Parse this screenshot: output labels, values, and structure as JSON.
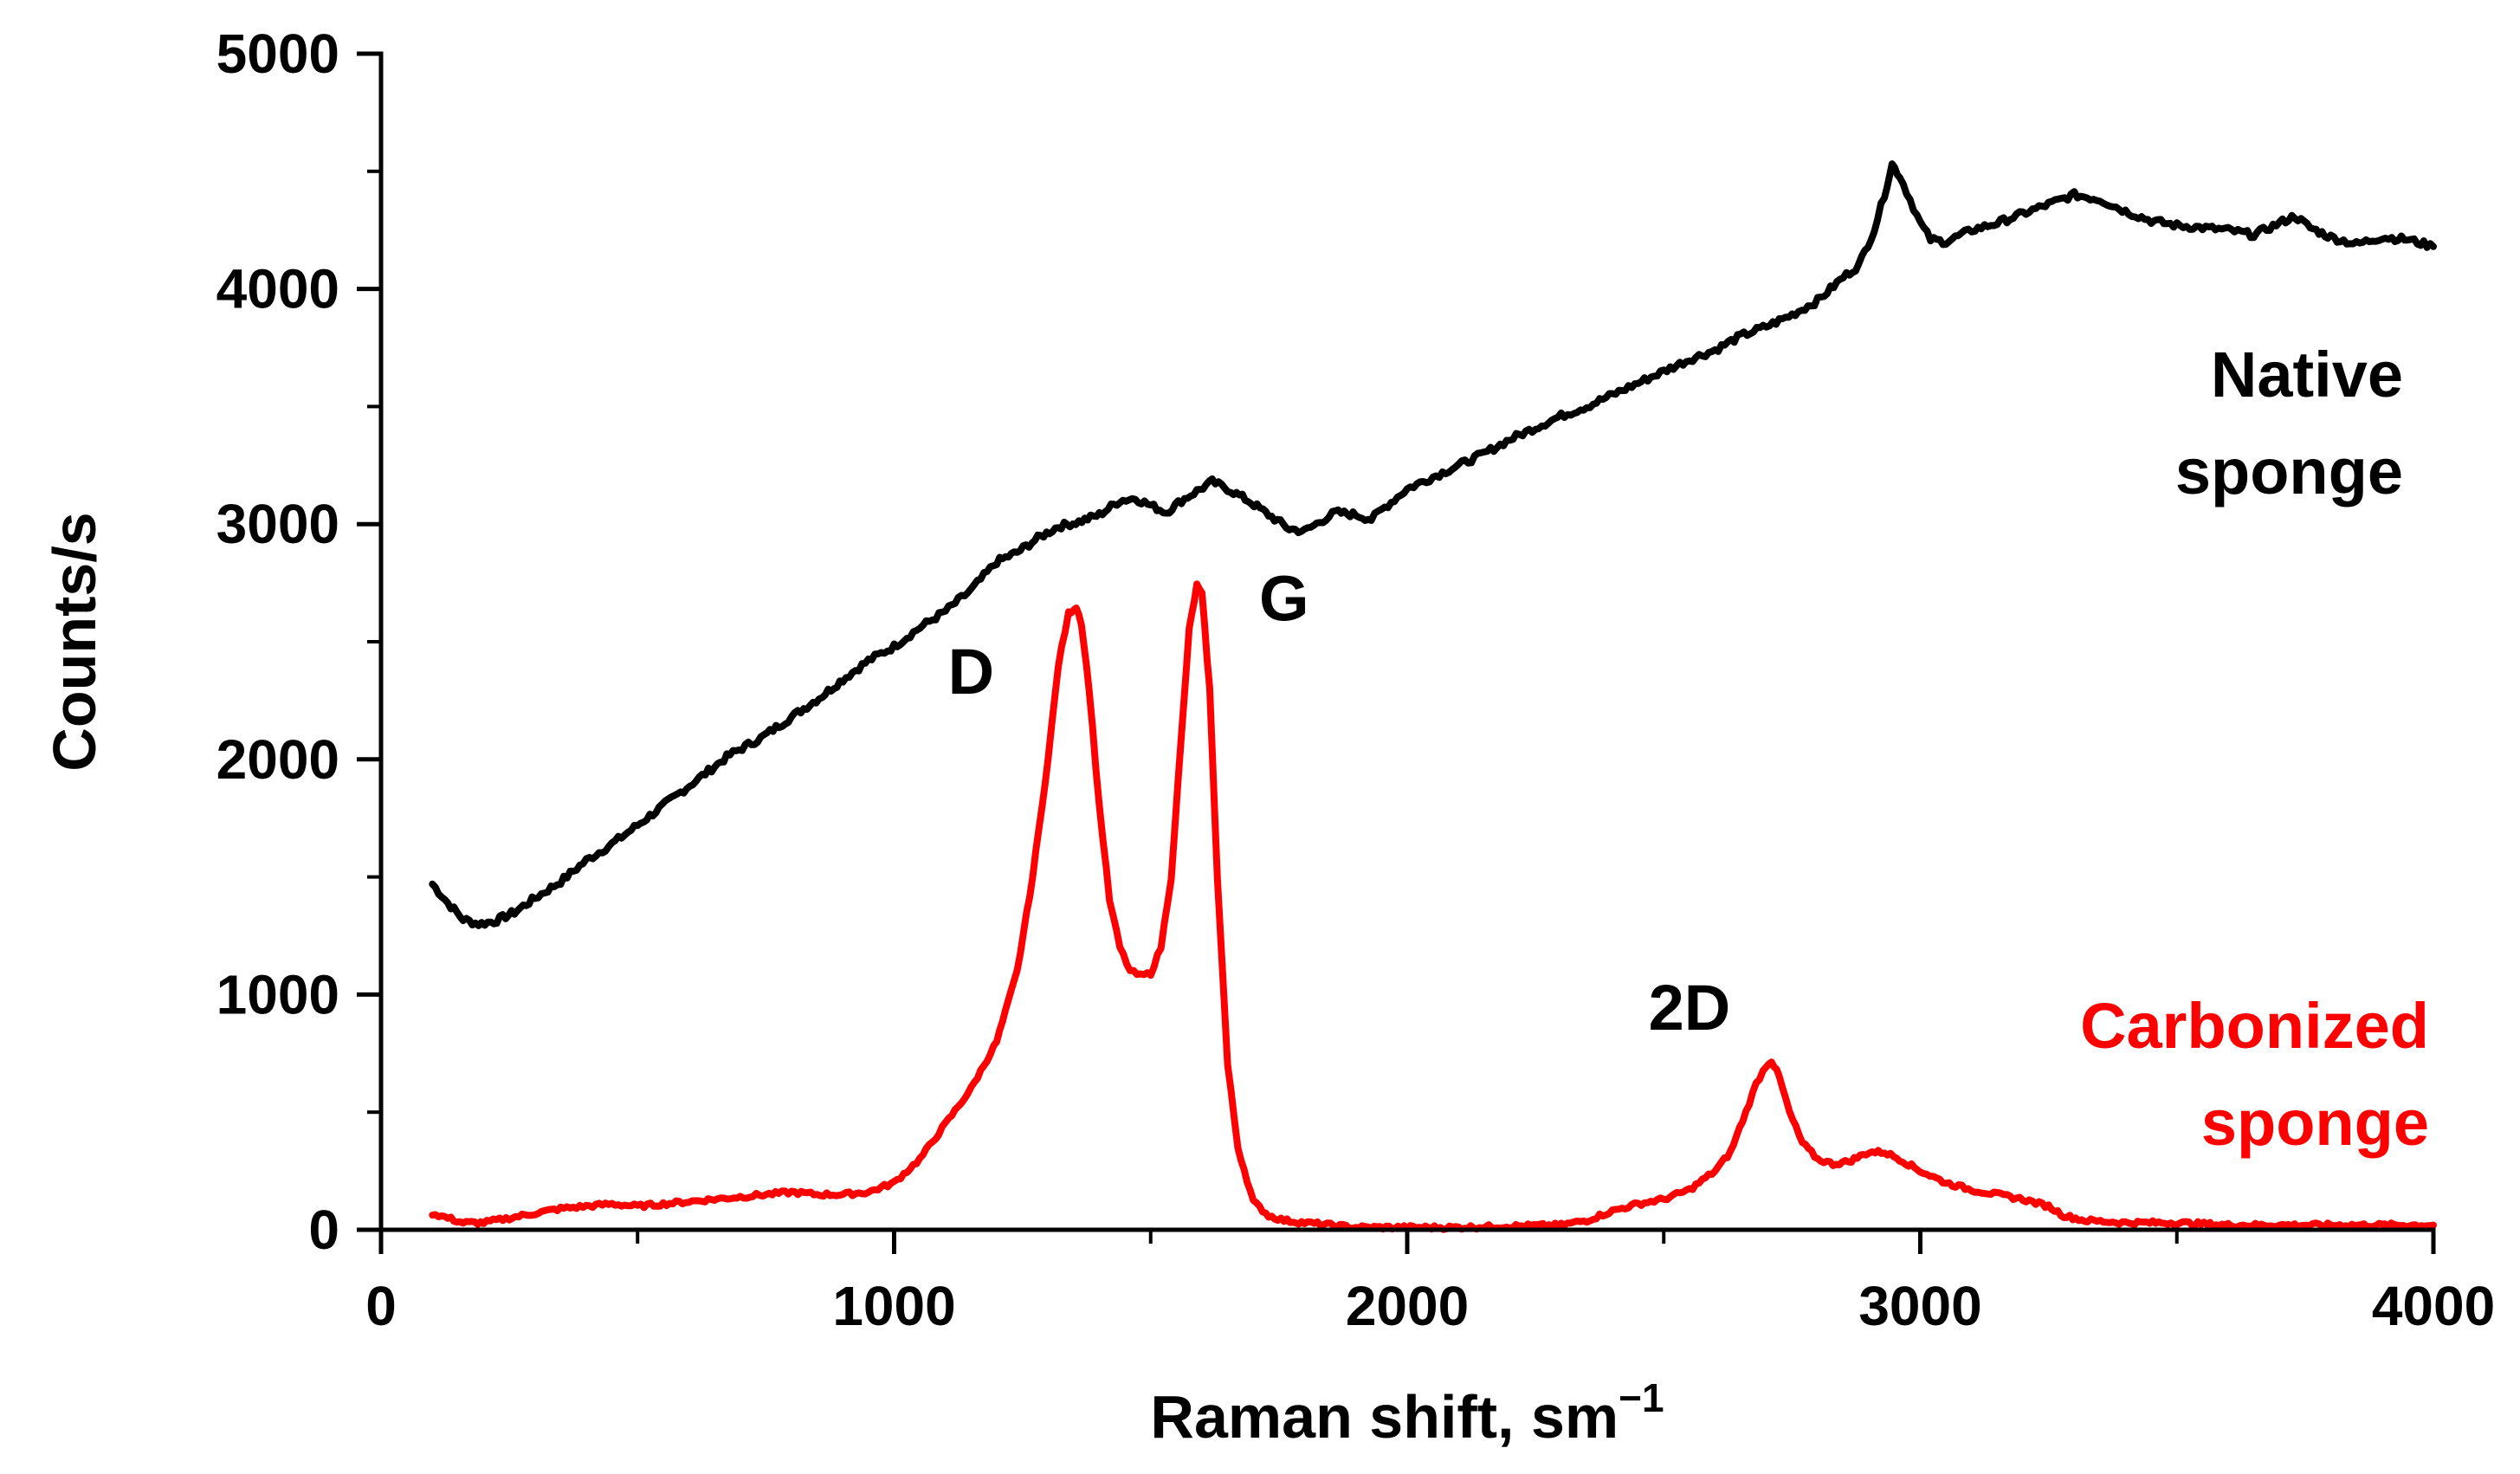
{
  "chart_data": {
    "type": "line",
    "xlabel": "Raman shift, sm",
    "xlabel_superscript": "−1",
    "ylabel": "Counts/s",
    "xlim": [
      0,
      4000
    ],
    "ylim": [
      0,
      5000
    ],
    "xticks": [
      0,
      1000,
      2000,
      3000,
      4000
    ],
    "yticks": [
      0,
      1000,
      2000,
      3000,
      4000,
      5000
    ],
    "xminor": [
      500,
      1500,
      2500,
      3500
    ],
    "yminor": [
      500,
      1500,
      2500,
      3500,
      4500
    ],
    "series": [
      {
        "name": "Native sponge",
        "label_lines": [
          "Native",
          "sponge"
        ],
        "color": "#000000",
        "x": [
          100,
          130,
          160,
          190,
          220,
          260,
          300,
          350,
          400,
          450,
          500,
          560,
          620,
          680,
          740,
          800,
          860,
          900,
          950,
          1000,
          1050,
          1100,
          1150,
          1200,
          1240,
          1280,
          1320,
          1360,
          1400,
          1440,
          1470,
          1500,
          1530,
          1560,
          1590,
          1620,
          1650,
          1690,
          1730,
          1770,
          1800,
          1830,
          1860,
          1900,
          1930,
          1950,
          2000,
          2050,
          2100,
          2150,
          2200,
          2250,
          2300,
          2350,
          2400,
          2450,
          2500,
          2550,
          2600,
          2650,
          2700,
          2750,
          2800,
          2850,
          2880,
          2910,
          2930,
          2945,
          2960,
          2980,
          3000,
          3020,
          3050,
          3080,
          3100,
          3150,
          3200,
          3250,
          3300,
          3350,
          3400,
          3450,
          3500,
          3550,
          3600,
          3650,
          3700,
          3730,
          3760,
          3800,
          3850,
          3900,
          3950,
          4000
        ],
        "values": [
          1470,
          1390,
          1320,
          1300,
          1310,
          1350,
          1410,
          1480,
          1570,
          1640,
          1720,
          1820,
          1920,
          2020,
          2090,
          2180,
          2270,
          2340,
          2420,
          2480,
          2560,
          2630,
          2720,
          2840,
          2880,
          2940,
          2990,
          3010,
          3040,
          3100,
          3110,
          3080,
          3050,
          3100,
          3140,
          3180,
          3150,
          3100,
          3040,
          2980,
          2970,
          3010,
          3050,
          3040,
          3020,
          3060,
          3150,
          3200,
          3250,
          3300,
          3360,
          3410,
          3460,
          3500,
          3550,
          3600,
          3650,
          3700,
          3740,
          3800,
          3840,
          3890,
          3950,
          4050,
          4100,
          4250,
          4400,
          4530,
          4480,
          4380,
          4280,
          4210,
          4200,
          4230,
          4250,
          4280,
          4320,
          4360,
          4400,
          4380,
          4330,
          4290,
          4270,
          4260,
          4250,
          4230,
          4280,
          4310,
          4260,
          4220,
          4190,
          4220,
          4210,
          4180
        ]
      },
      {
        "name": "Carbonized sponge",
        "label_lines": [
          "Carbonized",
          "sponge"
        ],
        "color": "#ff0000",
        "x": [
          100,
          130,
          160,
          200,
          250,
          300,
          350,
          400,
          450,
          500,
          550,
          600,
          650,
          700,
          750,
          800,
          850,
          900,
          950,
          1000,
          1050,
          1100,
          1150,
          1200,
          1240,
          1270,
          1300,
          1320,
          1340,
          1355,
          1365,
          1380,
          1400,
          1420,
          1440,
          1460,
          1480,
          1500,
          1520,
          1540,
          1560,
          1575,
          1590,
          1600,
          1615,
          1630,
          1650,
          1670,
          1700,
          1730,
          1760,
          1800,
          1850,
          1900,
          2000,
          2100,
          2200,
          2300,
          2350,
          2400,
          2450,
          2500,
          2550,
          2600,
          2630,
          2660,
          2680,
          2700,
          2710,
          2725,
          2745,
          2770,
          2800,
          2830,
          2860,
          2900,
          2930,
          2960,
          3000,
          3050,
          3100,
          3150,
          3200,
          3250,
          3280,
          3320,
          3400,
          3500,
          3600,
          3700,
          3800,
          3900,
          4000
        ],
        "values": [
          70,
          50,
          30,
          30,
          50,
          70,
          90,
          100,
          110,
          100,
          110,
          120,
          130,
          140,
          150,
          160,
          150,
          150,
          160,
          200,
          300,
          450,
          600,
          800,
          1100,
          1500,
          2000,
          2400,
          2620,
          2650,
          2580,
          2300,
          1800,
          1400,
          1200,
          1100,
          1080,
          1090,
          1200,
          1500,
          2100,
          2550,
          2740,
          2700,
          2300,
          1500,
          700,
          350,
          120,
          60,
          40,
          30,
          20,
          10,
          10,
          10,
          15,
          20,
          40,
          80,
          110,
          130,
          170,
          250,
          330,
          500,
          620,
          700,
          720,
          650,
          500,
          370,
          300,
          280,
          290,
          330,
          330,
          300,
          250,
          200,
          170,
          150,
          130,
          100,
          60,
          40,
          30,
          30,
          20,
          20,
          20,
          20,
          20
        ]
      }
    ],
    "annotations": [
      {
        "text": "D",
        "x": 1150,
        "y": 2280
      },
      {
        "text": "G",
        "x": 1760,
        "y": 2590
      },
      {
        "text": "2D",
        "x": 2550,
        "y": 850
      }
    ]
  }
}
